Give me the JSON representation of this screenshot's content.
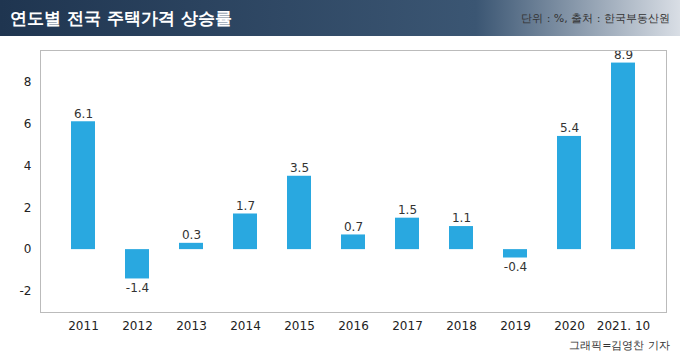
{
  "chart_data": {
    "type": "bar",
    "title": "연도별 전국 주택가격 상승률",
    "subtitle": "단위 : %, 출처 : 한국부동산원",
    "caption": "그래픽=김영찬 기자",
    "categories": [
      "2011",
      "2012",
      "2013",
      "2014",
      "2015",
      "2016",
      "2017",
      "2018",
      "2019",
      "2020",
      "2021. 10"
    ],
    "values": [
      6.1,
      -1.4,
      0.3,
      1.7,
      3.5,
      0.7,
      1.5,
      1.1,
      -0.4,
      5.4,
      8.9
    ],
    "color": "#29a8e0",
    "ylim": [
      -3,
      9.5
    ],
    "yticks": [
      -2,
      0,
      2,
      4,
      6,
      8
    ],
    "grid": false,
    "data_labels": true
  }
}
